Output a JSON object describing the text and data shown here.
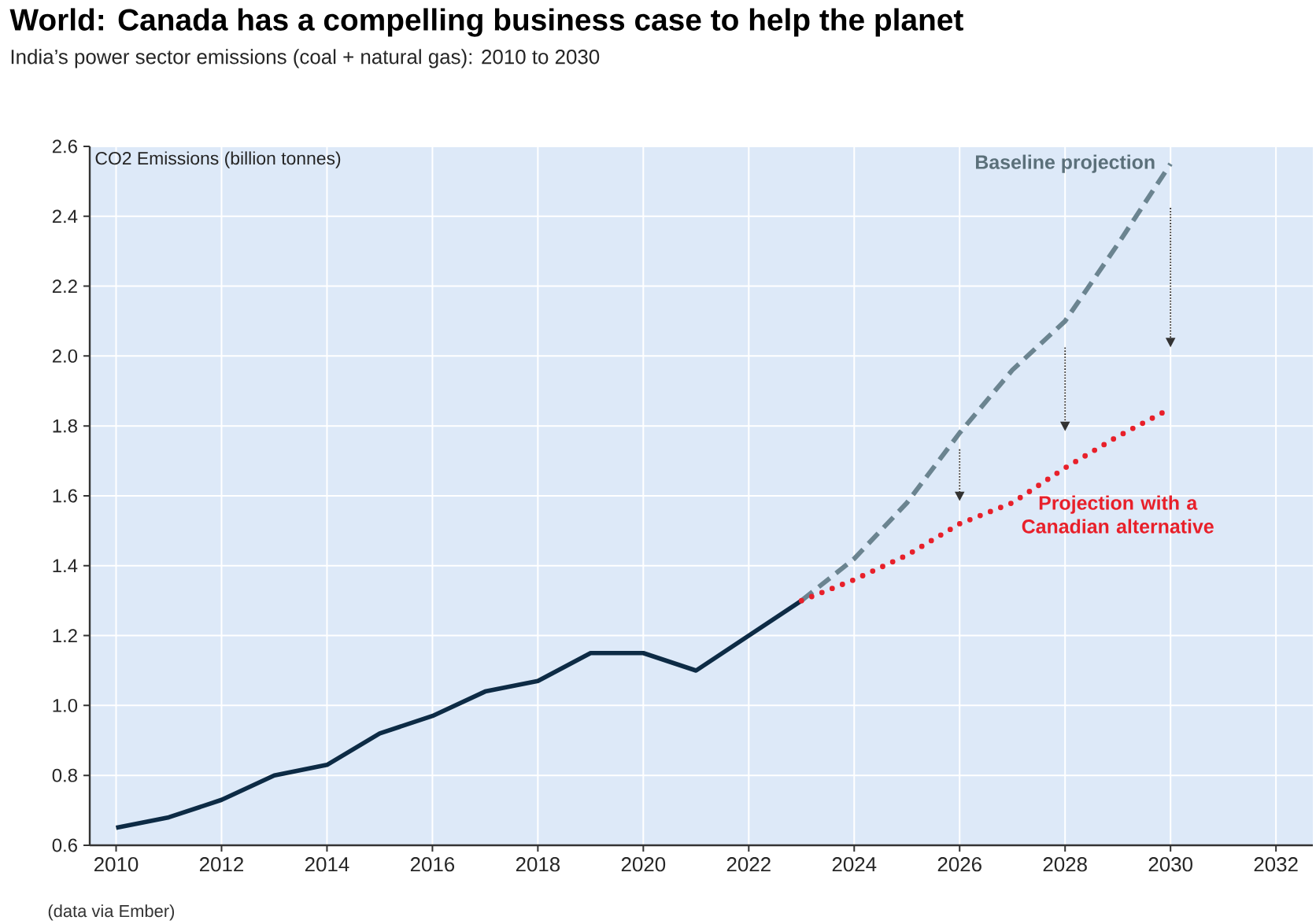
{
  "chart_data": {
    "type": "line",
    "title": "World: Canada has a compelling business case to help the planet",
    "subtitle": "India’s power sector emissions (coal + natural gas): 2010 to 2030",
    "ylabel": "CO2 Emissions (billion tonnes)",
    "annotations": [
      "(data via Ember)"
    ],
    "series": [
      {
        "color": "#0d2b45",
        "line_style": "solid",
        "x": [
          2010,
          2011,
          2012,
          2013,
          2014,
          2015,
          2016,
          2017,
          2018,
          2019,
          2020,
          2021,
          2022,
          2023
        ],
        "values": [
          0.65,
          0.68,
          0.73,
          0.8,
          0.83,
          0.92,
          0.97,
          1.04,
          1.07,
          1.15,
          1.15,
          1.1,
          1.2,
          1.3
        ]
      },
      {
        "name": "Baseline projection",
        "color": "#6b8490",
        "line_style": "dashed",
        "x": [
          2023,
          2024,
          2025,
          2026,
          2027,
          2028,
          2029,
          2030
        ],
        "values": [
          1.3,
          1.42,
          1.58,
          1.78,
          1.96,
          2.1,
          2.32,
          2.55
        ]
      },
      {
        "name": "Projection with a Canadian alternative",
        "color": "#e8202a",
        "line_style": "dotted",
        "x": [
          2023,
          2024,
          2025,
          2026,
          2027,
          2028,
          2029,
          2030
        ],
        "values": [
          1.3,
          1.36,
          1.43,
          1.52,
          1.58,
          1.68,
          1.77,
          1.85
        ]
      }
    ],
    "xlim": [
      2009.5,
      2032.7
    ],
    "xticks": [
      2010,
      2012,
      2014,
      2016,
      2018,
      2020,
      2022,
      2024,
      2026,
      2028,
      2030,
      2032
    ],
    "ylim": [
      0.6,
      2.6
    ],
    "yticks": [
      {
        "value": 0.6,
        "label": "0.6"
      },
      {
        "value": 0.8,
        "label": "0.8"
      },
      {
        "value": 1.0,
        "label": "1.0"
      },
      {
        "value": 1.2,
        "label": "1.2"
      },
      {
        "value": 1.4,
        "label": "1.4"
      },
      {
        "value": 1.6,
        "label": "1.6"
      },
      {
        "value": 1.8,
        "label": "1.8"
      },
      {
        "value": 2.0,
        "label": "2.0"
      },
      {
        "value": 2.2,
        "label": "2.2"
      },
      {
        "value": 2.4,
        "label": "2.4"
      },
      {
        "value": 2.6,
        "label": "2.6"
      }
    ],
    "grid": true,
    "marker": "none"
  }
}
